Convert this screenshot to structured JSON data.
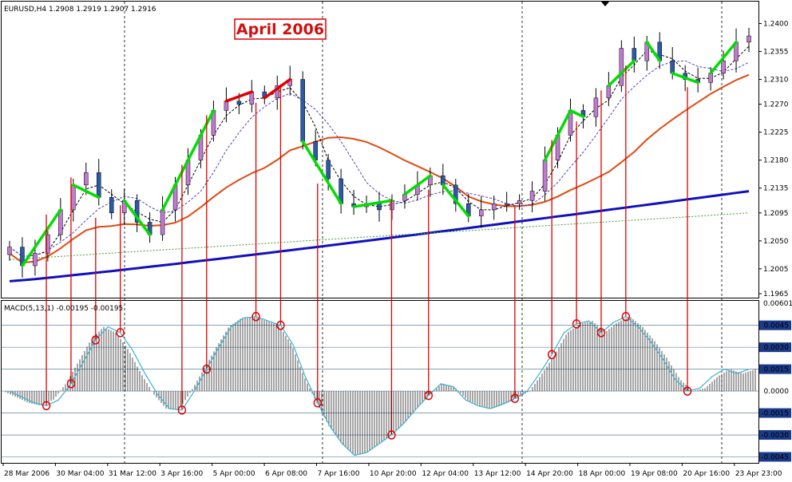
{
  "header": {
    "symbol_label": "EURUSD,H4  1.2908 1.2919 1.2907 1.2916",
    "annotation": "April 2006",
    "macd_label": "MACD(5,13,1) -0.00195 -0.00195"
  },
  "colors": {
    "up_candle": "#c07ad0",
    "down_candle": "#2a5aa8",
    "trend_up": "#00dd00",
    "trend_down": "#e00000",
    "ma_fast": "#1010c0",
    "ma_mid": "#e04a10",
    "ma_slow": "#3aa030",
    "macd_line": "#3db0d0",
    "marker": "#e00000"
  },
  "chart_data": [
    {
      "type": "candlestick",
      "title": "EURUSD,H4",
      "ohlc_last": [
        1.2908,
        1.2919,
        1.2907,
        1.2916
      ],
      "ylim": [
        1.1965,
        1.2425
      ],
      "y_ticks": [
        "1.2400",
        "1.2355",
        "1.2310",
        "1.2270",
        "1.2225",
        "1.2180",
        "1.2135",
        "1.2095",
        "1.2050",
        "1.2005",
        "1.1965"
      ],
      "x_ticks": [
        "28 Mar 2006",
        "30 Mar 04:00",
        "31 Mar 12:00",
        "3 Apr 16:00",
        "5 Apr 00:00",
        "6 Apr 08:00",
        "7 Apr 16:00",
        "10 Apr 20:00",
        "12 Apr 04:00",
        "13 Apr 12:00",
        "14 Apr 20:00",
        "18 Apr 00:00",
        "19 Apr 08:00",
        "20 Apr 16:00",
        "23 Apr 23:00"
      ],
      "close_path": [
        1.204,
        1.201,
        1.203,
        1.206,
        1.21,
        1.214,
        1.216,
        1.212,
        1.2095,
        1.2115,
        1.208,
        1.206,
        1.21,
        1.214,
        1.218,
        1.222,
        1.226,
        1.2275,
        1.227,
        1.229,
        1.228,
        1.23,
        1.231,
        1.221,
        1.218,
        1.215,
        1.211,
        1.2105,
        1.211,
        1.21,
        1.2115,
        1.2125,
        1.214,
        1.2155,
        1.214,
        1.211,
        1.209,
        1.21,
        1.211,
        1.211,
        1.2115,
        1.213,
        1.218,
        1.222,
        1.226,
        1.225,
        1.228,
        1.23,
        1.236,
        1.234,
        1.237,
        1.234,
        1.232,
        1.231,
        1.2305,
        1.232,
        1.234,
        1.237,
        1.238
      ]
    },
    {
      "type": "bar",
      "title": "MACD(5,13,1)",
      "values_last": [
        -0.00195,
        -0.00195
      ],
      "ylim": [
        -0.0048,
        0.00601
      ],
      "y_ticks": [
        "0.00601",
        "0.0045",
        "0.0030",
        "0.0015",
        "0.0000",
        "-0.0015",
        "-0.0030",
        "-0.0045"
      ],
      "histogram": [
        0.0,
        -0.0004,
        -0.0008,
        -0.001,
        -0.0006,
        0.0005,
        0.002,
        0.0035,
        0.0044,
        0.004,
        0.0028,
        0.0012,
        -0.0002,
        -0.0012,
        -0.0013,
        0.0,
        0.0015,
        0.003,
        0.0044,
        0.005,
        0.0051,
        0.0048,
        0.0045,
        0.0032,
        0.001,
        -0.0008,
        -0.0024,
        -0.0036,
        -0.0044,
        -0.0042,
        -0.0036,
        -0.003,
        -0.0022,
        -0.0012,
        -0.0003,
        0.0005,
        0.0003,
        -0.0006,
        -0.001,
        -0.0012,
        -0.0009,
        -0.0005,
        0.0,
        0.0012,
        0.0025,
        0.004,
        0.0046,
        0.0048,
        0.004,
        0.0047,
        0.0051,
        0.0044,
        0.0034,
        0.0022,
        0.0008,
        0.0,
        0.0002,
        0.001,
        0.0015,
        0.0012,
        0.0015
      ]
    }
  ]
}
